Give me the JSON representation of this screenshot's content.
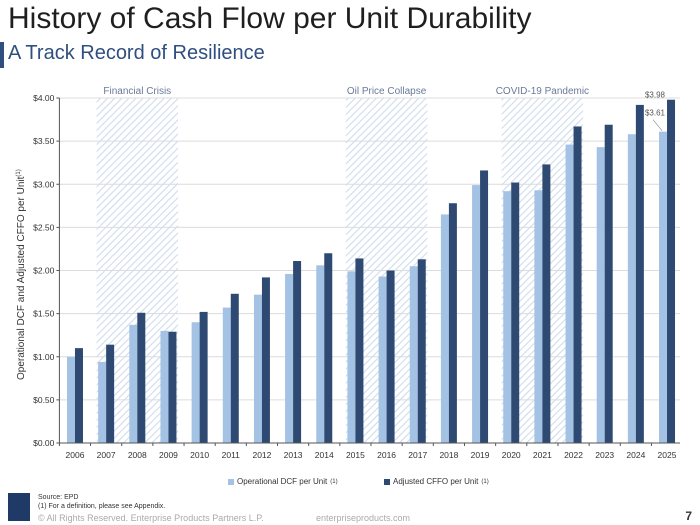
{
  "header": {
    "title": "History of Cash Flow per Unit Durability",
    "subtitle": "A Track Record of Resilience"
  },
  "chart_data": {
    "type": "bar",
    "ylabel": "Operational DCF and Adjusted CFFO per Unit",
    "ylabel_sup": "(1)",
    "ylim": [
      0,
      4
    ],
    "yticks": [
      "$0.00",
      "$0.50",
      "$1.00",
      "$1.50",
      "$2.00",
      "$2.50",
      "$3.00",
      "$3.50",
      "$4.00"
    ],
    "grid": true,
    "legend_position": "bottom",
    "categories": [
      "2006",
      "2007",
      "2008",
      "2009",
      "2010",
      "2011",
      "2012",
      "2013",
      "2014",
      "2015",
      "2016",
      "2017",
      "2018",
      "2019",
      "2020",
      "2021",
      "2022",
      "2023",
      "2024",
      "2025"
    ],
    "series": [
      {
        "name": "Operational DCF per Unit",
        "sup": "(1)",
        "color": "#a4c2e4",
        "values": [
          1.0,
          0.94,
          1.37,
          1.3,
          1.4,
          1.57,
          1.72,
          1.96,
          2.06,
          1.99,
          1.93,
          2.05,
          2.65,
          2.99,
          2.92,
          2.93,
          3.46,
          3.43,
          3.58,
          3.61
        ]
      },
      {
        "name": "Adjusted CFFO per Unit",
        "sup": "(1)",
        "color": "#2e4a72",
        "values": [
          1.1,
          1.14,
          1.51,
          1.29,
          1.52,
          1.73,
          1.92,
          2.11,
          2.2,
          2.14,
          2.0,
          2.13,
          2.78,
          3.16,
          3.02,
          3.23,
          3.67,
          3.69,
          3.92,
          3.98
        ]
      }
    ],
    "shaded_periods": [
      {
        "label": "Financial Crisis",
        "from": "2007",
        "to": "2009"
      },
      {
        "label": "Oil Price Collapse",
        "from": "2015",
        "to": "2017"
      },
      {
        "label": "COVID-19 Pandemic",
        "from": "2020",
        "to": "2022"
      }
    ],
    "data_labels": [
      "$3.98",
      "$3.61"
    ]
  },
  "footer": {
    "source": "Source:  EPD",
    "note": "(1)  For a definition, please see Appendix.",
    "copyright": "© All Rights Reserved. Enterprise Products Partners L.P.",
    "website": "enterpriseproducts.com",
    "page": "7"
  }
}
